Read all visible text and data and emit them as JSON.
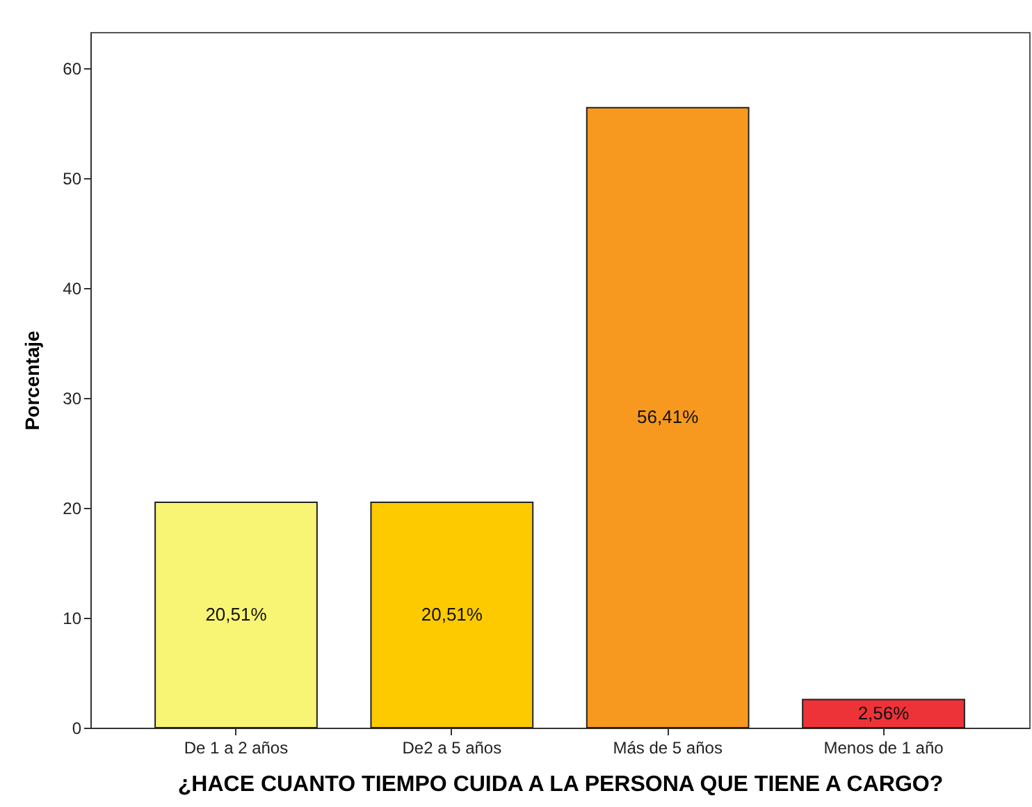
{
  "chart_data": {
    "type": "bar",
    "xlabel": "¿HACE CUANTO TIEMPO CUIDA A LA PERSONA QUE TIENE A CARGO?",
    "ylabel": "Porcentaje",
    "categories": [
      "De 1 a 2 años",
      "De2 a 5 años",
      "Más de 5 años",
      "Menos de 1 año"
    ],
    "values": [
      20.51,
      20.51,
      56.41,
      2.56
    ],
    "colors": [
      "#f8f574",
      "#fdca00",
      "#f7991e",
      "#ee3338"
    ],
    "value_labels": [
      "20,51%",
      "20,51%",
      "56,41%",
      "2,56%"
    ],
    "ylim": [
      0,
      63.3
    ],
    "yticks": [
      0,
      10,
      20,
      30,
      40,
      50,
      60
    ],
    "grid": false
  }
}
